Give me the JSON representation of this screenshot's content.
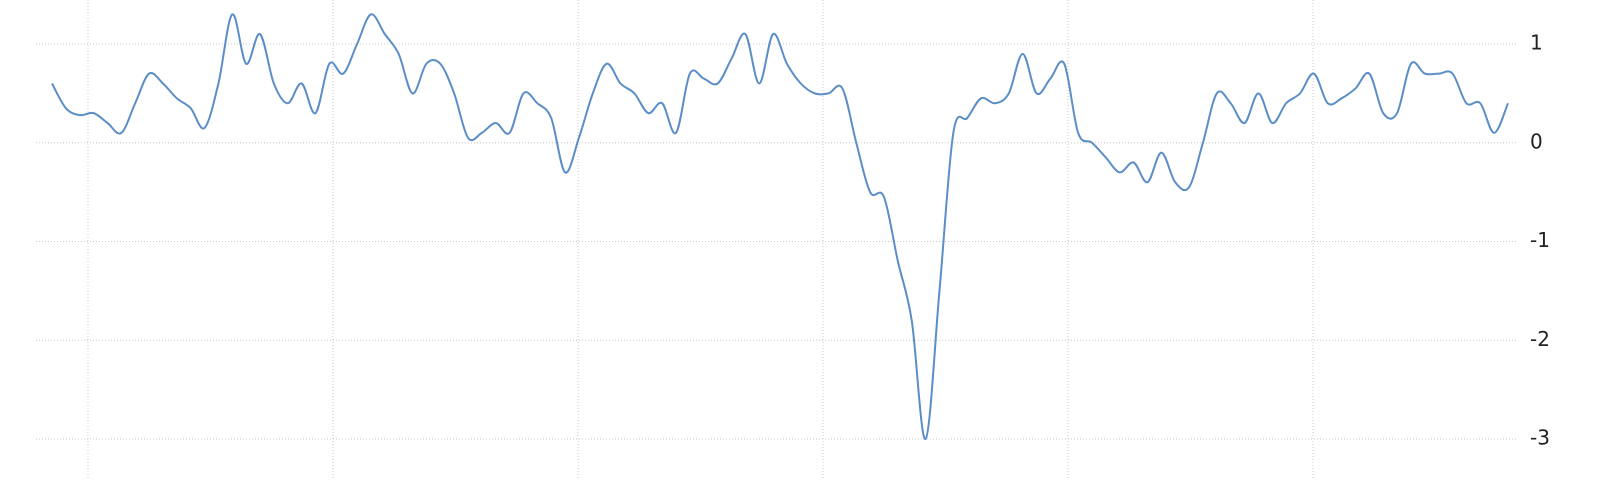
{
  "chart_data": {
    "type": "line",
    "color": "#5b8ec6",
    "grid": true,
    "ylim": [
      -3,
      1
    ],
    "yticks": [
      1,
      0,
      -1,
      -2,
      -3
    ],
    "values": [
      0.6,
      0.35,
      0.28,
      0.3,
      0.2,
      0.1,
      0.4,
      0.7,
      0.6,
      0.45,
      0.35,
      0.15,
      0.6,
      1.3,
      0.8,
      1.1,
      0.6,
      0.4,
      0.6,
      0.3,
      0.8,
      0.7,
      1.0,
      1.3,
      1.1,
      0.9,
      0.5,
      0.8,
      0.8,
      0.5,
      0.05,
      0.1,
      0.2,
      0.1,
      0.5,
      0.4,
      0.25,
      -0.3,
      0.05,
      0.5,
      0.8,
      0.6,
      0.5,
      0.3,
      0.4,
      0.1,
      0.7,
      0.65,
      0.6,
      0.85,
      1.1,
      0.6,
      1.1,
      0.8,
      0.6,
      0.5,
      0.5,
      0.55,
      0.0,
      -0.5,
      -0.55,
      -1.2,
      -1.8,
      -3.0,
      -1.5,
      0.1,
      0.25,
      0.45,
      0.4,
      0.5,
      0.9,
      0.5,
      0.65,
      0.8,
      0.1,
      0.0,
      -0.15,
      -0.3,
      -0.2,
      -0.4,
      -0.1,
      -0.4,
      -0.45,
      0.0,
      0.5,
      0.4,
      0.2,
      0.5,
      0.2,
      0.4,
      0.5,
      0.7,
      0.4,
      0.45,
      0.55,
      0.7,
      0.3,
      0.3,
      0.8,
      0.7,
      0.7,
      0.7,
      0.4,
      0.4,
      0.1,
      0.4
    ]
  }
}
